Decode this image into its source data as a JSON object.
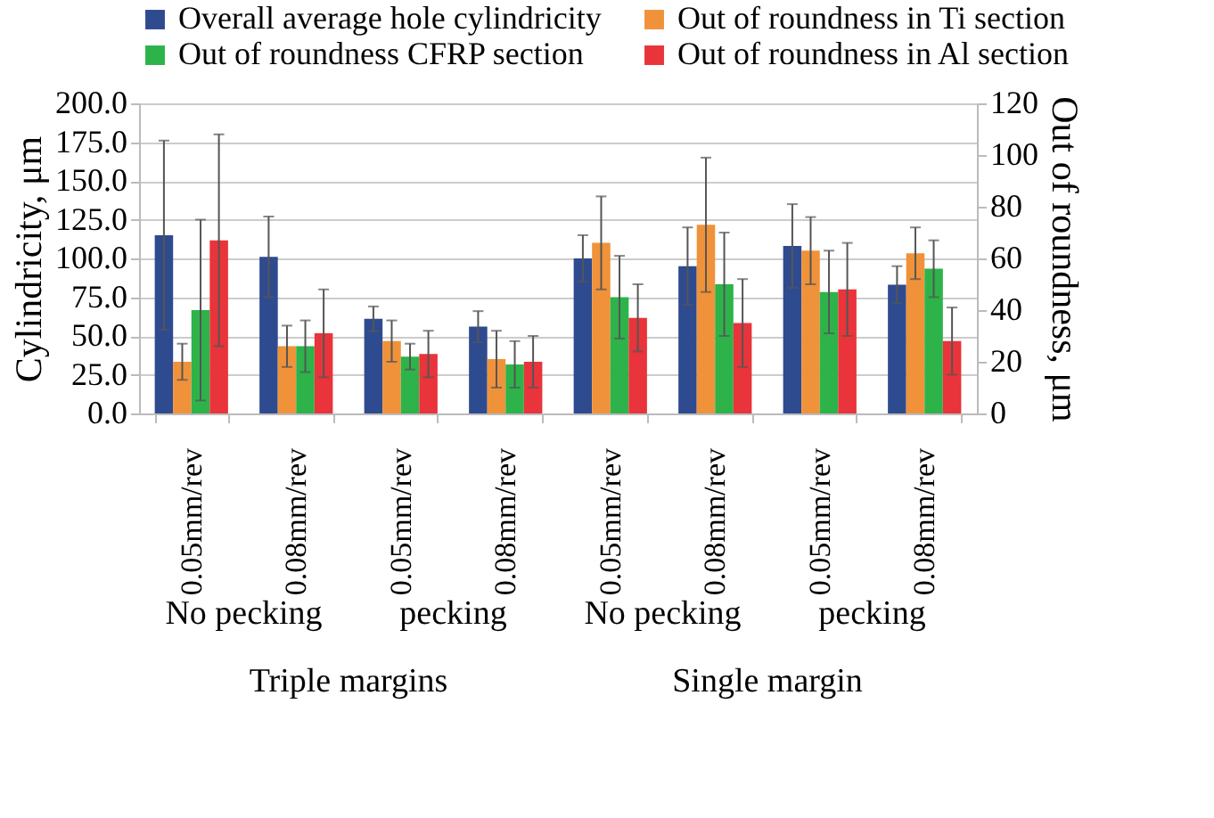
{
  "chart_data": {
    "type": "bar",
    "categories": [
      "0.05mm/rev",
      "0.08mm/rev",
      "0.05mm/rev",
      "0.08mm/rev",
      "0.05mm/rev",
      "0.08mm/rev",
      "0.05mm/rev",
      "0.08mm/rev"
    ],
    "ylabel": "Cylindricity, μm",
    "y2label": "Out of roundness, μm",
    "series": [
      {
        "name": "Overall average hole cylindricity",
        "color": "#2f4b8f",
        "values": [
          115,
          101,
          61,
          56,
          100,
          95,
          108,
          83
        ],
        "errors": [
          61,
          26,
          8,
          10,
          15,
          25,
          27,
          12
        ]
      },
      {
        "name": "Out of roundness in Ti section",
        "color": "#f0923a",
        "axis": "y2",
        "values": [
          20,
          26,
          28,
          21,
          66,
          73,
          63,
          62
        ],
        "errors": [
          7,
          8,
          8,
          11,
          18,
          26,
          13,
          10
        ]
      },
      {
        "name": "Out of roundness CFRP section",
        "color": "#2db34a",
        "axis": "y2",
        "values": [
          40,
          26,
          22,
          19,
          45,
          50,
          47,
          56
        ],
        "errors": [
          35,
          10,
          5,
          9,
          16,
          20,
          16,
          11
        ]
      },
      {
        "name": "Out of roundness in Al section",
        "color": "#e8343a",
        "axis": "y2",
        "values": [
          67,
          31,
          23,
          20,
          37,
          35,
          48,
          28
        ],
        "errors": [
          41,
          17,
          9,
          10,
          13,
          17,
          18,
          13
        ]
      }
    ],
    "ylim": [
      0,
      200
    ],
    "yticks": [
      {
        "value": 0,
        "label": "0.0"
      },
      {
        "value": 25,
        "label": "25.0"
      },
      {
        "value": 50,
        "label": "50.0"
      },
      {
        "value": 75,
        "label": "75.0"
      },
      {
        "value": 100,
        "label": "100.0"
      },
      {
        "value": 125,
        "label": "125.0"
      },
      {
        "value": 150,
        "label": "150.0"
      },
      {
        "value": 175,
        "label": "175.0"
      },
      {
        "value": 200,
        "label": "200.0"
      }
    ],
    "y2lim": [
      0,
      120
    ],
    "y2ticks": [
      0,
      20,
      40,
      60,
      80,
      100,
      120
    ],
    "annotations": [
      "No pecking",
      "pecking",
      "No pecking",
      "pecking",
      "Triple margins",
      "Single margin"
    ],
    "grid": "y",
    "legend": "top"
  }
}
